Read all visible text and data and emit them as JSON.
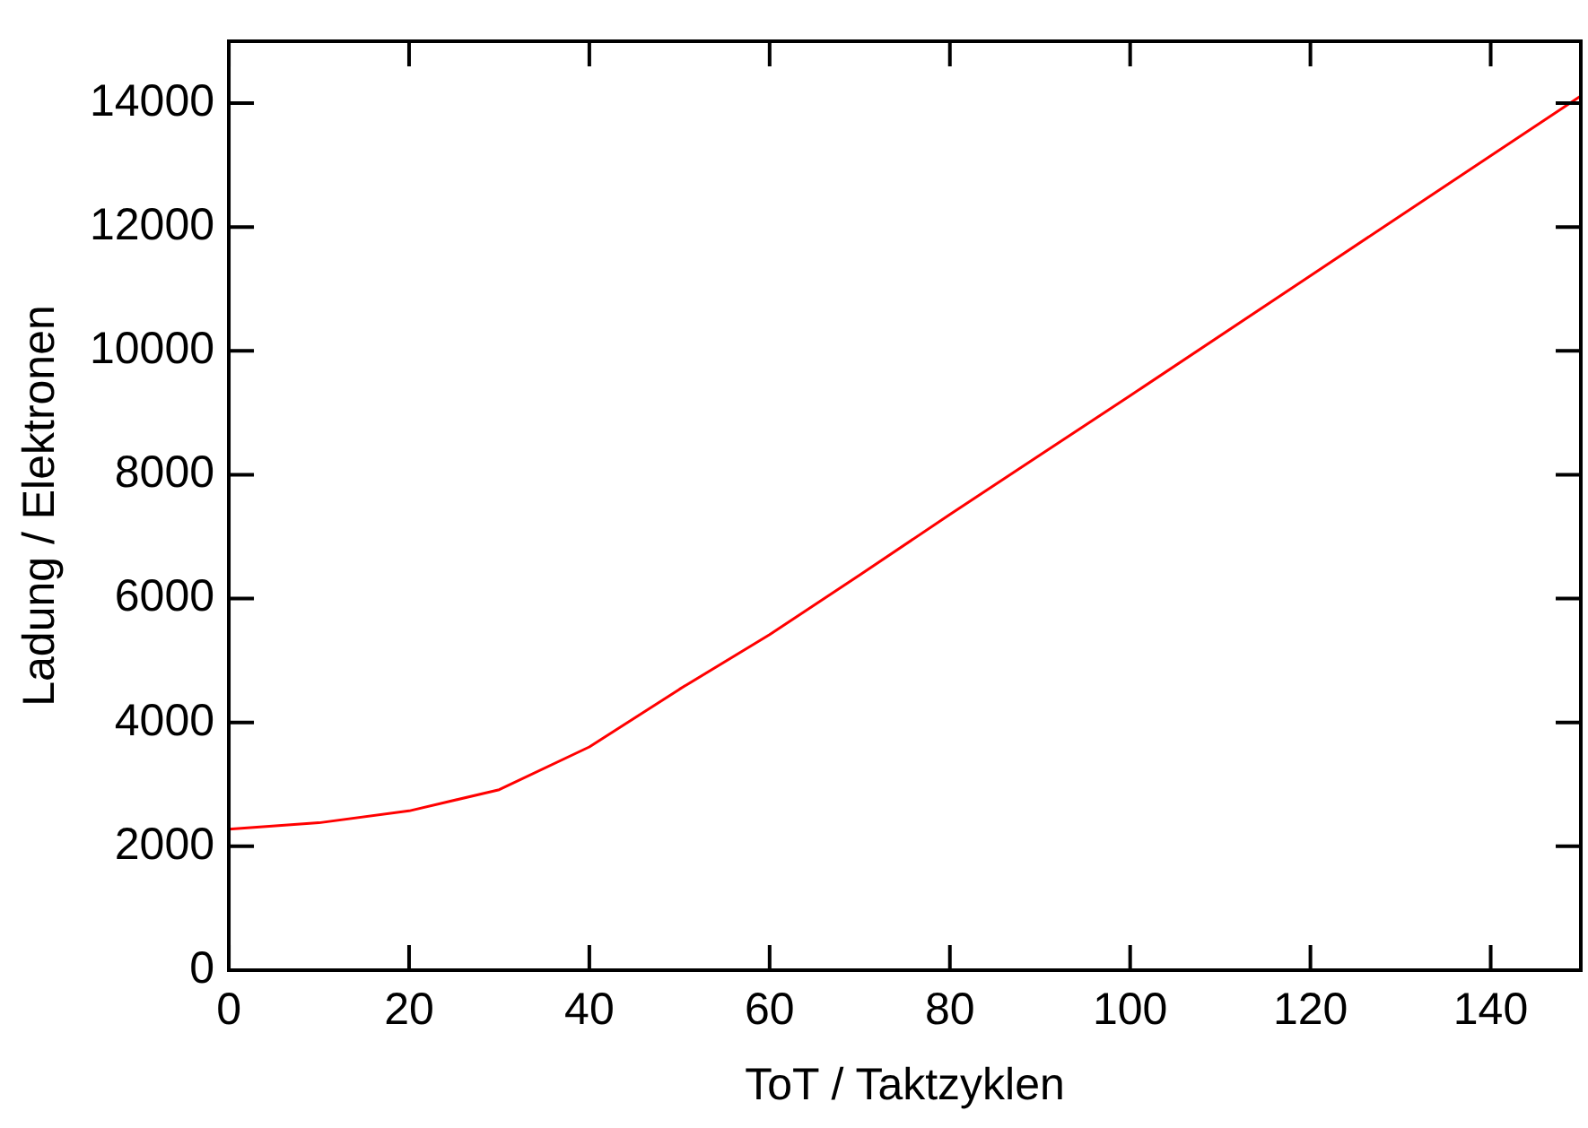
{
  "chart_data": {
    "type": "line",
    "xlabel": "ToT / Taktzyklen",
    "ylabel": "Ladung / Elektronen",
    "x": [
      0,
      10,
      20,
      30,
      40,
      50,
      60,
      70,
      80,
      100,
      120,
      140,
      150
    ],
    "series": [
      {
        "color": "#ff0000",
        "values": [
          2277,
          2380,
          2572,
          2915,
          3605,
          4537,
          5420,
          6380,
          7360,
          9278,
          11215,
          13150,
          14115
        ]
      }
    ],
    "xlim": [
      0,
      150
    ],
    "xticks": [
      0,
      20,
      40,
      60,
      80,
      100,
      120,
      140
    ],
    "ylim": [
      0,
      15000
    ],
    "yticks": [
      0,
      2000,
      4000,
      6000,
      8000,
      10000,
      12000,
      14000
    ],
    "grid": false,
    "legend": false,
    "marker": "none",
    "line_style": "solid"
  }
}
